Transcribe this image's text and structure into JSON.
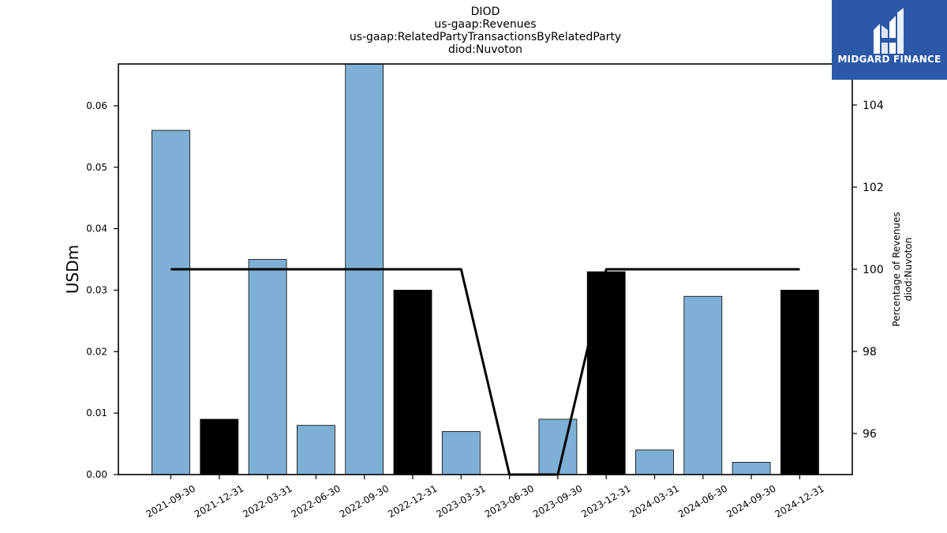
{
  "title": {
    "line1": "DIOD",
    "line2": "us-gaap:Revenues",
    "line3": "us-gaap:RelatedPartyTransactionsByRelatedParty",
    "line4": "diod:Nuvoton"
  },
  "logo": {
    "text": "MIDGARD FINANCE",
    "bg_color": "#2b59a8"
  },
  "chart_data": {
    "type": "bar",
    "categories": [
      "2021-09-30",
      "2021-12-31",
      "2022-03-31",
      "2022-06-30",
      "2022-09-30",
      "2022-12-31",
      "2023-03-31",
      "2023-06-30",
      "2023-09-30",
      "2023-12-31",
      "2024-03-31",
      "2024-06-30",
      "2024-09-30",
      "2024-12-31"
    ],
    "values": [
      0.056,
      0.009,
      0.035,
      0.008,
      0.067,
      0.03,
      0.007,
      null,
      0.009,
      0.033,
      0.004,
      0.029,
      0.002,
      0.03
    ],
    "bar_colors": [
      "#7eb0d5",
      "#000000",
      "#7eb0d5",
      "#7eb0d5",
      "#7eb0d5",
      "#000000",
      "#7eb0d5",
      null,
      "#7eb0d5",
      "#000000",
      "#7eb0d5",
      "#7eb0d5",
      "#7eb0d5",
      "#000000"
    ],
    "ylabel": "USDm",
    "ylim": [
      0,
      0.0668
    ],
    "yticks": [
      "0.00",
      "0.01",
      "0.02",
      "0.03",
      "0.04",
      "0.05",
      "0.06"
    ],
    "secondary_axis": {
      "label_line1": "Percentage of Revenues",
      "label_line2": "diod:Nuvoton",
      "ylim": [
        95,
        105
      ],
      "yticks": [
        "96",
        "98",
        "100",
        "102",
        "104"
      ],
      "series": {
        "type": "line",
        "color": "#000000",
        "values": [
          100,
          100,
          100,
          100,
          100,
          100,
          100,
          95,
          95,
          100,
          100,
          100,
          100,
          100
        ]
      }
    },
    "grid": false,
    "legend": "none"
  }
}
